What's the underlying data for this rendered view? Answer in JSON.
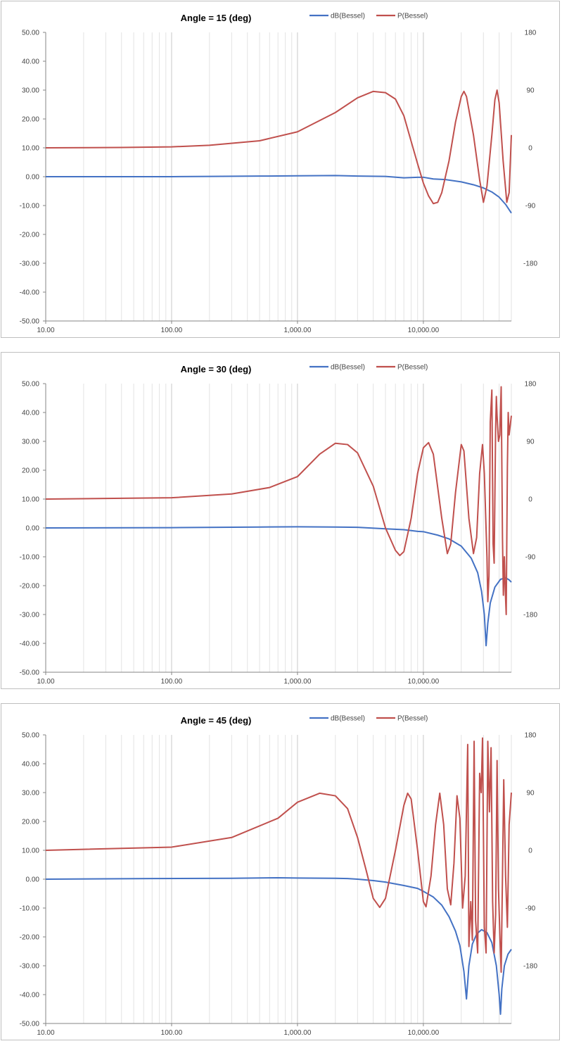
{
  "chart_data": [
    {
      "type": "line",
      "title": "Angle = 15 (deg)",
      "x_scale": "log",
      "xlim": [
        10,
        50000
      ],
      "ylim": [
        -50,
        50
      ],
      "y2lim": [
        -270,
        180
      ],
      "grid": true,
      "legend_placement": "top-right",
      "x_tick_labels": [
        {
          "x": 10,
          "label": "10.00"
        },
        {
          "x": 100,
          "label": "100.00"
        },
        {
          "x": 1000,
          "label": "1,000.00"
        },
        {
          "x": 10000,
          "label": "10,000.00"
        }
      ],
      "y_tick_labels": [
        "50.00",
        "40.00",
        "30.00",
        "20.00",
        "10.00",
        "0.00",
        "-10.00",
        "-20.00",
        "-30.00",
        "-40.00",
        "-50.00"
      ],
      "y2_tick_labels": [
        {
          "v": 180,
          "label": "180"
        },
        {
          "v": 90,
          "label": "90"
        },
        {
          "v": 0,
          "label": "0"
        },
        {
          "v": -90,
          "label": "-90"
        },
        {
          "v": -180,
          "label": "-180"
        }
      ],
      "series": [
        {
          "name": "dB(Bessel)",
          "axis": "left",
          "color": "#4472c4",
          "points": [
            [
              10,
              0
            ],
            [
              100,
              0
            ],
            [
              200,
              0.1
            ],
            [
              500,
              0.2
            ],
            [
              1000,
              0.3
            ],
            [
              2000,
              0.4
            ],
            [
              3000,
              0.2
            ],
            [
              5000,
              0.1
            ],
            [
              7000,
              -0.4
            ],
            [
              9000,
              -0.2
            ],
            [
              10000,
              -0.2
            ],
            [
              12000,
              -0.8
            ],
            [
              15000,
              -1.0
            ],
            [
              20000,
              -1.8
            ],
            [
              25000,
              -2.8
            ],
            [
              30000,
              -3.9
            ],
            [
              35000,
              -5.3
            ],
            [
              40000,
              -7.1
            ],
            [
              45000,
              -9.6
            ],
            [
              50000,
              -12.6
            ]
          ]
        },
        {
          "name": "P(Bessel)",
          "axis": "right",
          "color": "#c0504d",
          "points": [
            [
              10,
              0
            ],
            [
              40,
              0.5
            ],
            [
              100,
              1.5
            ],
            [
              200,
              4
            ],
            [
              500,
              11
            ],
            [
              1000,
              25
            ],
            [
              2000,
              55
            ],
            [
              3000,
              78
            ],
            [
              4000,
              88
            ],
            [
              5000,
              86
            ],
            [
              6000,
              76
            ],
            [
              7000,
              50
            ],
            [
              8000,
              10
            ],
            [
              9000,
              -25
            ],
            [
              10000,
              -55
            ],
            [
              11000,
              -75
            ],
            [
              12000,
              -87
            ],
            [
              13000,
              -85
            ],
            [
              14000,
              -70
            ],
            [
              16000,
              -20
            ],
            [
              18000,
              40
            ],
            [
              20000,
              80
            ],
            [
              21000,
              88
            ],
            [
              22000,
              80
            ],
            [
              25000,
              20
            ],
            [
              28000,
              -50
            ],
            [
              30000,
              -85
            ],
            [
              32000,
              -60
            ],
            [
              35000,
              20
            ],
            [
              37000,
              75
            ],
            [
              38500,
              90
            ],
            [
              40000,
              70
            ],
            [
              43000,
              -20
            ],
            [
              46000,
              -85
            ],
            [
              48000,
              -70
            ],
            [
              50000,
              20
            ]
          ]
        }
      ]
    },
    {
      "type": "line",
      "title": "Angle = 30 (deg)",
      "x_scale": "log",
      "xlim": [
        10,
        50000
      ],
      "ylim": [
        -50,
        50
      ],
      "y2lim": [
        -270,
        180
      ],
      "grid": true,
      "legend_placement": "top-right",
      "x_tick_labels": [
        {
          "x": 10,
          "label": "10.00"
        },
        {
          "x": 100,
          "label": "100.00"
        },
        {
          "x": 1000,
          "label": "1,000.00"
        },
        {
          "x": 10000,
          "label": "10,000.00"
        }
      ],
      "y_tick_labels": [
        "50.00",
        "40.00",
        "30.00",
        "20.00",
        "10.00",
        "0.00",
        "-10.00",
        "-20.00",
        "-30.00",
        "-40.00",
        "-50.00"
      ],
      "y2_tick_labels": [
        {
          "v": 180,
          "label": "180"
        },
        {
          "v": 90,
          "label": "90"
        },
        {
          "v": 0,
          "label": "0"
        },
        {
          "v": -90,
          "label": "-90"
        },
        {
          "v": -180,
          "label": "-180"
        }
      ],
      "series": [
        {
          "name": "dB(Bessel)",
          "axis": "left",
          "color": "#4472c4",
          "points": [
            [
              10,
              0
            ],
            [
              100,
              0.1
            ],
            [
              500,
              0.3
            ],
            [
              1000,
              0.4
            ],
            [
              2000,
              0.3
            ],
            [
              3000,
              0.2
            ],
            [
              5000,
              -0.3
            ],
            [
              7000,
              -0.6
            ],
            [
              9000,
              -1.2
            ],
            [
              10000,
              -1.3
            ],
            [
              13000,
              -2.5
            ],
            [
              16000,
              -3.8
            ],
            [
              20000,
              -6.3
            ],
            [
              24000,
              -10.5
            ],
            [
              27000,
              -15.5
            ],
            [
              29000,
              -22
            ],
            [
              30500,
              -30
            ],
            [
              31500,
              -40.8
            ],
            [
              32500,
              -33
            ],
            [
              34000,
              -26
            ],
            [
              37000,
              -20.5
            ],
            [
              41000,
              -17.8
            ],
            [
              45000,
              -17.3
            ],
            [
              48000,
              -18
            ],
            [
              50000,
              -18.8
            ]
          ]
        },
        {
          "name": "P(Bessel)",
          "axis": "right",
          "color": "#c0504d",
          "points": [
            [
              10,
              0
            ],
            [
              100,
              2
            ],
            [
              300,
              8
            ],
            [
              600,
              18
            ],
            [
              1000,
              35
            ],
            [
              1500,
              70
            ],
            [
              2000,
              87
            ],
            [
              2500,
              85
            ],
            [
              3000,
              72
            ],
            [
              4000,
              20
            ],
            [
              5000,
              -45
            ],
            [
              6000,
              -80
            ],
            [
              6500,
              -88
            ],
            [
              7000,
              -82
            ],
            [
              8000,
              -30
            ],
            [
              9000,
              40
            ],
            [
              10000,
              80
            ],
            [
              11000,
              88
            ],
            [
              12000,
              70
            ],
            [
              14000,
              -30
            ],
            [
              15500,
              -85
            ],
            [
              16500,
              -70
            ],
            [
              18000,
              10
            ],
            [
              20000,
              85
            ],
            [
              21000,
              75
            ],
            [
              23000,
              -30
            ],
            [
              25000,
              -85
            ],
            [
              26500,
              -60
            ],
            [
              28000,
              40
            ],
            [
              29500,
              85
            ],
            [
              30500,
              40
            ],
            [
              32000,
              -90
            ],
            [
              32500,
              -160
            ],
            [
              33200,
              -120
            ],
            [
              34000,
              120
            ],
            [
              35000,
              170
            ],
            [
              35800,
              -70
            ],
            [
              36500,
              -100
            ],
            [
              37500,
              110
            ],
            [
              38000,
              160
            ],
            [
              38500,
              130
            ],
            [
              39500,
              90
            ],
            [
              40500,
              100
            ],
            [
              41500,
              175
            ],
            [
              42500,
              -60
            ],
            [
              43200,
              -150
            ],
            [
              44000,
              -90
            ],
            [
              44700,
              -140
            ],
            [
              45500,
              -180
            ],
            [
              46500,
              50
            ],
            [
              47200,
              135
            ],
            [
              48000,
              100
            ],
            [
              50000,
              130
            ]
          ]
        }
      ]
    },
    {
      "type": "line",
      "title": "Angle = 45 (deg)",
      "x_scale": "log",
      "xlim": [
        10,
        50000
      ],
      "ylim": [
        -50,
        50
      ],
      "y2lim": [
        -270,
        180
      ],
      "grid": true,
      "legend_placement": "top-right",
      "x_tick_labels": [
        {
          "x": 10,
          "label": "10.00"
        },
        {
          "x": 100,
          "label": "100.00"
        },
        {
          "x": 1000,
          "label": "1,000.00"
        },
        {
          "x": 10000,
          "label": "10,000.00"
        }
      ],
      "y_tick_labels": [
        "50.00",
        "40.00",
        "30.00",
        "20.00",
        "10.00",
        "0.00",
        "-10.00",
        "-20.00",
        "-30.00",
        "-40.00",
        "-50.00"
      ],
      "y2_tick_labels": [
        {
          "v": 180,
          "label": "180"
        },
        {
          "v": 90,
          "label": "90"
        },
        {
          "v": 0,
          "label": "0"
        },
        {
          "v": -90,
          "label": "-90"
        },
        {
          "v": -180,
          "label": "-180"
        }
      ],
      "series": [
        {
          "name": "dB(Bessel)",
          "axis": "left",
          "color": "#4472c4",
          "points": [
            [
              10,
              0
            ],
            [
              70,
              0.2
            ],
            [
              300,
              0.3
            ],
            [
              700,
              0.5
            ],
            [
              1000,
              0.4
            ],
            [
              2000,
              0.3
            ],
            [
              2500,
              0.2
            ],
            [
              3000,
              0
            ],
            [
              4000,
              -0.5
            ],
            [
              5000,
              -1
            ],
            [
              7000,
              -2.2
            ],
            [
              9000,
              -3.2
            ],
            [
              10000,
              -4.2
            ],
            [
              12000,
              -6.2
            ],
            [
              14000,
              -9
            ],
            [
              16000,
              -13
            ],
            [
              18000,
              -18
            ],
            [
              19500,
              -23
            ],
            [
              21000,
              -32
            ],
            [
              22000,
              -41.5
            ],
            [
              23000,
              -30
            ],
            [
              24500,
              -22.5
            ],
            [
              26500,
              -19
            ],
            [
              29000,
              -17.5
            ],
            [
              32000,
              -18.5
            ],
            [
              35000,
              -22
            ],
            [
              38000,
              -30
            ],
            [
              40000,
              -40
            ],
            [
              41000,
              -46.8
            ],
            [
              42000,
              -38
            ],
            [
              44000,
              -30
            ],
            [
              47000,
              -26
            ],
            [
              50000,
              -24.3
            ]
          ]
        },
        {
          "name": "P(Bessel)",
          "axis": "right",
          "color": "#c0504d",
          "points": [
            [
              10,
              0
            ],
            [
              100,
              5
            ],
            [
              300,
              20
            ],
            [
              700,
              50
            ],
            [
              1000,
              75
            ],
            [
              1500,
              89
            ],
            [
              2000,
              85
            ],
            [
              2500,
              65
            ],
            [
              3000,
              20
            ],
            [
              3500,
              -30
            ],
            [
              4000,
              -75
            ],
            [
              4500,
              -89
            ],
            [
              5000,
              -75
            ],
            [
              6000,
              0
            ],
            [
              7000,
              70
            ],
            [
              7500,
              89
            ],
            [
              8000,
              80
            ],
            [
              9000,
              0
            ],
            [
              10000,
              -80
            ],
            [
              10500,
              -88
            ],
            [
              11500,
              -40
            ],
            [
              12500,
              40
            ],
            [
              13500,
              89
            ],
            [
              14500,
              40
            ],
            [
              15500,
              -60
            ],
            [
              16500,
              -85
            ],
            [
              17500,
              -20
            ],
            [
              18500,
              85
            ],
            [
              19500,
              50
            ],
            [
              20500,
              -90
            ],
            [
              21500,
              -40
            ],
            [
              22500,
              165
            ],
            [
              23000,
              -150
            ],
            [
              23800,
              -80
            ],
            [
              24500,
              -140
            ],
            [
              25300,
              170
            ],
            [
              26000,
              -110
            ],
            [
              27000,
              -160
            ],
            [
              28000,
              120
            ],
            [
              28800,
              90
            ],
            [
              29500,
              175
            ],
            [
              30500,
              -120
            ],
            [
              31500,
              -160
            ],
            [
              32500,
              170
            ],
            [
              33500,
              60
            ],
            [
              34500,
              160
            ],
            [
              35500,
              -80
            ],
            [
              36500,
              -160
            ],
            [
              37500,
              -100
            ],
            [
              38500,
              140
            ],
            [
              39500,
              -60
            ],
            [
              40500,
              -130
            ],
            [
              41500,
              -190
            ],
            [
              42500,
              -40
            ],
            [
              43500,
              110
            ],
            [
              45000,
              -40
            ],
            [
              46500,
              -120
            ],
            [
              48000,
              40
            ],
            [
              50000,
              90
            ]
          ]
        }
      ]
    }
  ]
}
